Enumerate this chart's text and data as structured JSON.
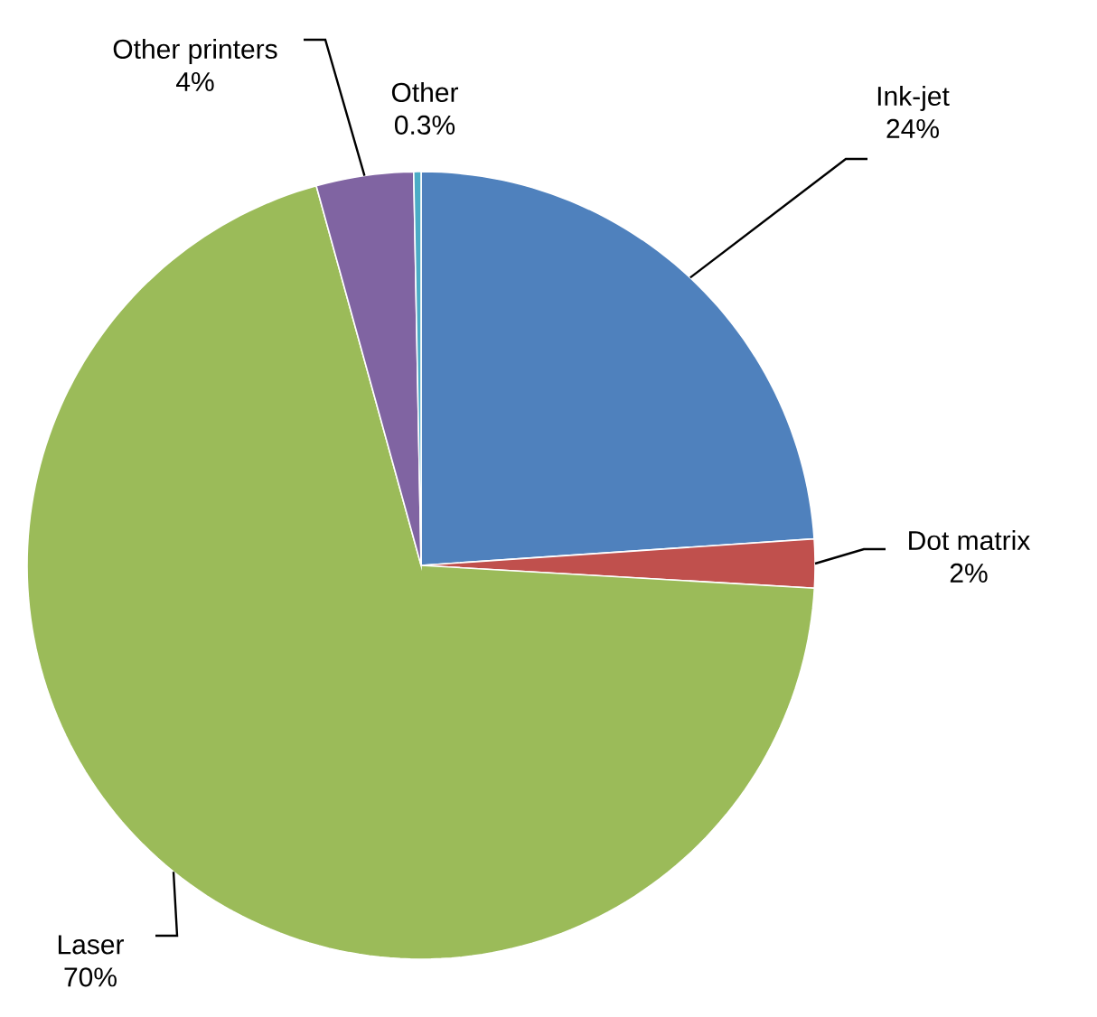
{
  "chart_data": {
    "type": "pie",
    "categories": [
      "Ink-jet",
      "Dot matrix",
      "Laser",
      "Other printers",
      "Other"
    ],
    "values": [
      24,
      2,
      70,
      4,
      0.3
    ],
    "value_labels": [
      "24%",
      "2%",
      "70%",
      "4%",
      "0.3%"
    ],
    "colors": [
      "#4f81bd",
      "#c0504d",
      "#9bbb59",
      "#8064a2",
      "#4bacc6"
    ]
  }
}
